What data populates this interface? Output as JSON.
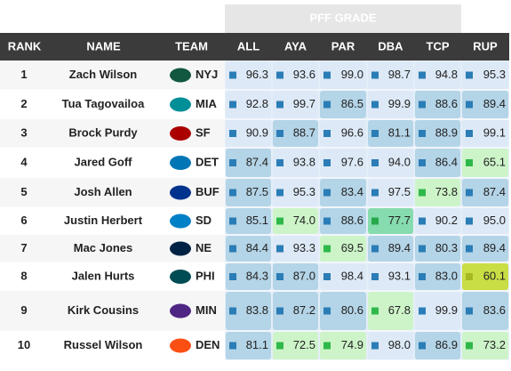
{
  "table": {
    "group_header": "PFF GRADE",
    "columns": [
      "RANK",
      "NAME",
      "TEAM",
      "ALL",
      "AYA",
      "PAR",
      "DBA",
      "TCP",
      "RUP"
    ],
    "rows": [
      {
        "rank": 1,
        "name": "Zach Wilson",
        "team": "NYJ",
        "grades": [
          "96.3",
          "93.6",
          "99.0",
          "98.7",
          "94.8",
          "95.3"
        ],
        "tints": [
          "#dde9f6",
          "#dde9f6",
          "#dde9f6",
          "#dde9f6",
          "#dde9f6",
          "#dde9f6"
        ]
      },
      {
        "rank": 2,
        "name": "Tua Tagovailoa",
        "team": "MIA",
        "grades": [
          "92.8",
          "99.7",
          "86.5",
          "99.9",
          "88.6",
          "89.4"
        ],
        "tints": [
          "#dde9f6",
          "#dde9f6",
          "#b4d4e7",
          "#dde9f6",
          "#b4d4e7",
          "#b4d4e7"
        ]
      },
      {
        "rank": 3,
        "name": "Brock Purdy",
        "team": "SF",
        "grades": [
          "90.9",
          "88.7",
          "96.6",
          "81.1",
          "88.9",
          "99.1"
        ],
        "tints": [
          "#dde9f6",
          "#b4d4e7",
          "#dde9f6",
          "#b4d4e7",
          "#b4d4e7",
          "#dde9f6"
        ]
      },
      {
        "rank": 4,
        "name": "Jared Goff",
        "team": "DET",
        "grades": [
          "87.4",
          "93.8",
          "97.6",
          "94.0",
          "86.4",
          "65.1"
        ],
        "tints": [
          "#b4d4e7",
          "#dde9f6",
          "#dde9f6",
          "#dde9f6",
          "#b4d4e7",
          "#cdf4c8"
        ]
      },
      {
        "rank": 5,
        "name": "Josh Allen",
        "team": "BUF",
        "grades": [
          "87.5",
          "95.3",
          "83.4",
          "97.5",
          "73.8",
          "87.4"
        ],
        "tints": [
          "#b4d4e7",
          "#dde9f6",
          "#b4d4e7",
          "#dde9f6",
          "#cdf4c8",
          "#b4d4e7"
        ]
      },
      {
        "rank": 6,
        "name": "Justin Herbert",
        "team": "SD",
        "grades": [
          "85.1",
          "74.0",
          "88.6",
          "77.7",
          "90.2",
          "95.0"
        ],
        "tints": [
          "#b4d4e7",
          "#cdf4c8",
          "#b4d4e7",
          "#86dcae",
          "#dde9f6",
          "#dde9f6"
        ]
      },
      {
        "rank": 7,
        "name": "Mac Jones",
        "team": "NE",
        "grades": [
          "84.4",
          "93.3",
          "69.5",
          "89.4",
          "80.3",
          "89.4"
        ],
        "tints": [
          "#b4d4e7",
          "#dde9f6",
          "#cdf4c8",
          "#b4d4e7",
          "#b4d4e7",
          "#b4d4e7"
        ]
      },
      {
        "rank": 8,
        "name": "Jalen Hurts",
        "team": "PHI",
        "grades": [
          "84.3",
          "87.0",
          "98.4",
          "93.1",
          "83.0",
          "60.1"
        ],
        "tints": [
          "#b4d4e7",
          "#b4d4e7",
          "#dde9f6",
          "#dde9f6",
          "#b4d4e7",
          "#c9dd45"
        ]
      },
      {
        "rank": 9,
        "name": "Kirk Cousins",
        "team": "MIN",
        "grades": [
          "83.8",
          "87.2",
          "80.6",
          "67.8",
          "99.9",
          "83.6"
        ],
        "tints": [
          "#b4d4e7",
          "#b4d4e7",
          "#b4d4e7",
          "#cdf4c8",
          "#dde9f6",
          "#b4d4e7"
        ]
      },
      {
        "rank": 10,
        "name": "Russel Wilson",
        "team": "DEN",
        "grades": [
          "81.1",
          "72.5",
          "74.9",
          "98.0",
          "86.9",
          "73.2"
        ],
        "tints": [
          "#b4d4e7",
          "#cdf4c8",
          "#cdf4c8",
          "#dde9f6",
          "#b4d4e7",
          "#cdf4c8"
        ]
      }
    ]
  }
}
